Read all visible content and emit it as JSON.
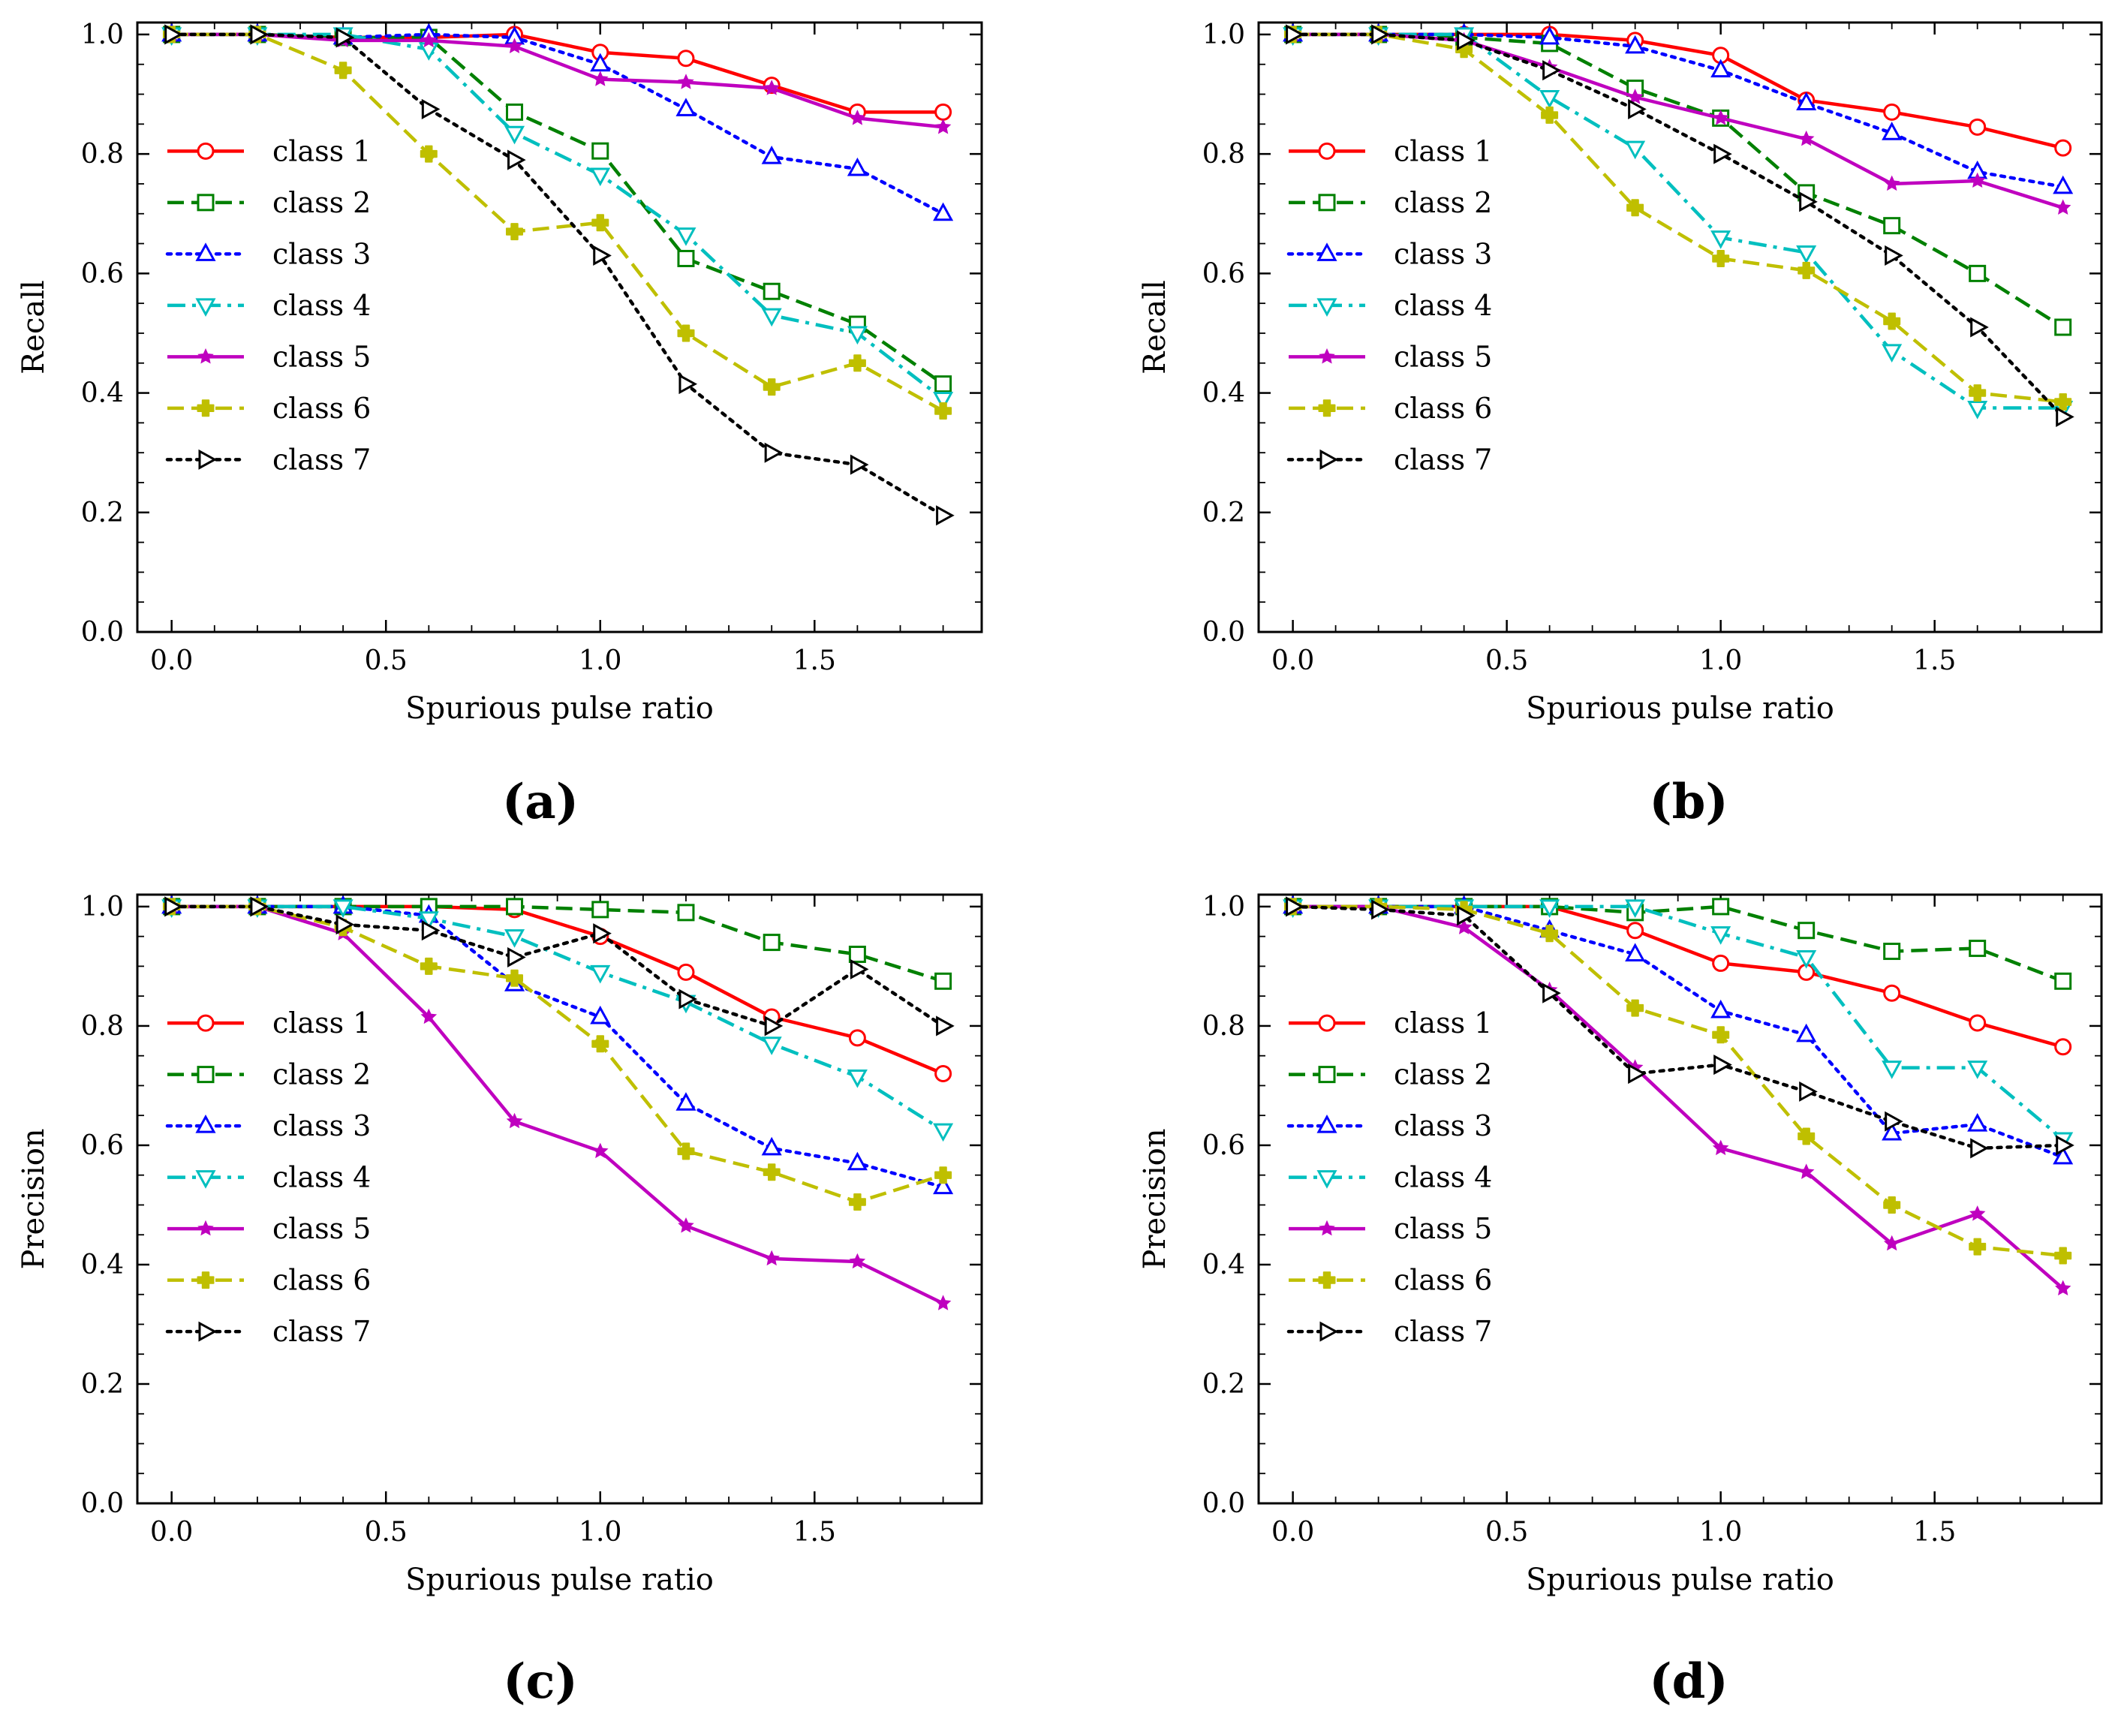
{
  "chart_data": [
    {
      "panel": "(a)",
      "type": "line",
      "xlabel": "Spurious pulse ratio",
      "ylabel": "Recall",
      "xlim": [
        -0.08,
        1.89
      ],
      "ylim": [
        0.0,
        1.02
      ],
      "xticks": [
        "0.0",
        "0.5",
        "1.0",
        "1.5"
      ],
      "yticks": [
        "0.0",
        "0.2",
        "0.4",
        "0.6",
        "0.8",
        "1.0"
      ],
      "legend": "center-left",
      "x": [
        0.0,
        0.2,
        0.4,
        0.6,
        0.8,
        1.0,
        1.2,
        1.4,
        1.6,
        1.8
      ],
      "series": [
        {
          "name": "class 1",
          "values": [
            1.0,
            1.0,
            0.995,
            0.995,
            1.0,
            0.97,
            0.96,
            0.915,
            0.87,
            0.87
          ]
        },
        {
          "name": "class 2",
          "values": [
            1.0,
            1.0,
            0.995,
            0.995,
            0.87,
            0.805,
            0.625,
            0.57,
            0.515,
            0.415
          ]
        },
        {
          "name": "class 3",
          "values": [
            1.0,
            1.0,
            0.995,
            1.0,
            0.995,
            0.95,
            0.875,
            0.795,
            0.775,
            0.7
          ]
        },
        {
          "name": "class 4",
          "values": [
            1.0,
            1.0,
            1.0,
            0.975,
            0.835,
            0.765,
            0.665,
            0.53,
            0.5,
            0.39
          ]
        },
        {
          "name": "class 5",
          "values": [
            1.0,
            1.0,
            0.99,
            0.99,
            0.98,
            0.925,
            0.92,
            0.91,
            0.86,
            0.845
          ]
        },
        {
          "name": "class 6",
          "values": [
            1.0,
            1.0,
            0.94,
            0.8,
            0.67,
            0.685,
            0.5,
            0.41,
            0.45,
            0.37
          ]
        },
        {
          "name": "class 7",
          "values": [
            1.0,
            1.0,
            0.995,
            0.875,
            0.79,
            0.63,
            0.415,
            0.3,
            0.28,
            0.195
          ]
        }
      ]
    },
    {
      "panel": "(b)",
      "type": "line",
      "xlabel": "Spurious pulse ratio",
      "ylabel": "Recall",
      "xlim": [
        -0.08,
        1.89
      ],
      "ylim": [
        0.0,
        1.02
      ],
      "xticks": [
        "0.0",
        "0.5",
        "1.0",
        "1.5"
      ],
      "yticks": [
        "0.0",
        "0.2",
        "0.4",
        "0.6",
        "0.8",
        "1.0"
      ],
      "legend": "center-left",
      "x": [
        0.0,
        0.2,
        0.4,
        0.6,
        0.8,
        1.0,
        1.2,
        1.4,
        1.6,
        1.8
      ],
      "series": [
        {
          "name": "class 1",
          "values": [
            1.0,
            1.0,
            1.0,
            1.0,
            0.99,
            0.965,
            0.89,
            0.87,
            0.845,
            0.81
          ]
        },
        {
          "name": "class 2",
          "values": [
            1.0,
            1.0,
            0.995,
            0.985,
            0.91,
            0.86,
            0.735,
            0.68,
            0.6,
            0.51
          ]
        },
        {
          "name": "class 3",
          "values": [
            1.0,
            1.0,
            1.0,
            0.995,
            0.98,
            0.94,
            0.885,
            0.835,
            0.77,
            0.745
          ]
        },
        {
          "name": "class 4",
          "values": [
            1.0,
            1.0,
            1.0,
            0.895,
            0.81,
            0.66,
            0.635,
            0.47,
            0.375,
            0.375
          ]
        },
        {
          "name": "class 5",
          "values": [
            1.0,
            1.0,
            0.99,
            0.945,
            0.895,
            0.86,
            0.825,
            0.75,
            0.755,
            0.71
          ]
        },
        {
          "name": "class 6",
          "values": [
            1.0,
            1.0,
            0.975,
            0.865,
            0.71,
            0.625,
            0.605,
            0.52,
            0.4,
            0.385
          ]
        },
        {
          "name": "class 7",
          "values": [
            1.0,
            1.0,
            0.99,
            0.94,
            0.875,
            0.8,
            0.72,
            0.63,
            0.51,
            0.36
          ]
        }
      ]
    },
    {
      "panel": "(c)",
      "type": "line",
      "xlabel": "Spurious pulse ratio",
      "ylabel": "Precision",
      "xlim": [
        -0.08,
        1.89
      ],
      "ylim": [
        0.0,
        1.02
      ],
      "xticks": [
        "0.0",
        "0.5",
        "1.0",
        "1.5"
      ],
      "yticks": [
        "0.0",
        "0.2",
        "0.4",
        "0.6",
        "0.8",
        "1.0"
      ],
      "legend": "center-left",
      "x": [
        0.0,
        0.2,
        0.4,
        0.6,
        0.8,
        1.0,
        1.2,
        1.4,
        1.6,
        1.8
      ],
      "series": [
        {
          "name": "class 1",
          "values": [
            1.0,
            1.0,
            1.0,
            1.0,
            0.995,
            0.95,
            0.89,
            0.815,
            0.78,
            0.72
          ]
        },
        {
          "name": "class 2",
          "values": [
            1.0,
            1.0,
            1.0,
            1.0,
            1.0,
            0.995,
            0.99,
            0.94,
            0.92,
            0.875
          ]
        },
        {
          "name": "class 3",
          "values": [
            1.0,
            1.0,
            1.0,
            0.985,
            0.87,
            0.815,
            0.67,
            0.595,
            0.57,
            0.53
          ]
        },
        {
          "name": "class 4",
          "values": [
            1.0,
            1.0,
            1.0,
            0.98,
            0.95,
            0.89,
            0.84,
            0.77,
            0.715,
            0.625
          ]
        },
        {
          "name": "class 5",
          "values": [
            1.0,
            1.0,
            0.955,
            0.815,
            0.64,
            0.59,
            0.465,
            0.41,
            0.405,
            0.335
          ]
        },
        {
          "name": "class 6",
          "values": [
            1.0,
            1.0,
            0.965,
            0.9,
            0.88,
            0.77,
            0.59,
            0.555,
            0.505,
            0.55
          ]
        },
        {
          "name": "class 7",
          "values": [
            1.0,
            1.0,
            0.97,
            0.96,
            0.915,
            0.955,
            0.845,
            0.8,
            0.895,
            0.8
          ]
        }
      ]
    },
    {
      "panel": "(d)",
      "type": "line",
      "xlabel": "Spurious pulse ratio",
      "ylabel": "Precision",
      "xlim": [
        -0.08,
        1.89
      ],
      "ylim": [
        0.0,
        1.02
      ],
      "xticks": [
        "0.0",
        "0.5",
        "1.0",
        "1.5"
      ],
      "yticks": [
        "0.0",
        "0.2",
        "0.4",
        "0.6",
        "0.8",
        "1.0"
      ],
      "legend": "center-left",
      "x": [
        0.0,
        0.2,
        0.4,
        0.6,
        0.8,
        1.0,
        1.2,
        1.4,
        1.6,
        1.8
      ],
      "series": [
        {
          "name": "class 1",
          "values": [
            1.0,
            1.0,
            1.0,
            1.0,
            0.96,
            0.905,
            0.89,
            0.855,
            0.805,
            0.765
          ]
        },
        {
          "name": "class 2",
          "values": [
            1.0,
            1.0,
            1.0,
            1.0,
            0.99,
            1.0,
            0.96,
            0.925,
            0.93,
            0.875
          ]
        },
        {
          "name": "class 3",
          "values": [
            1.0,
            1.0,
            1.0,
            0.96,
            0.92,
            0.825,
            0.785,
            0.62,
            0.635,
            0.58
          ]
        },
        {
          "name": "class 4",
          "values": [
            1.0,
            1.0,
            1.0,
            1.0,
            1.0,
            0.955,
            0.915,
            0.73,
            0.73,
            0.61
          ]
        },
        {
          "name": "class 5",
          "values": [
            1.0,
            1.0,
            0.965,
            0.86,
            0.73,
            0.595,
            0.555,
            0.435,
            0.485,
            0.36
          ]
        },
        {
          "name": "class 6",
          "values": [
            1.0,
            1.0,
            0.995,
            0.955,
            0.83,
            0.785,
            0.615,
            0.5,
            0.43,
            0.415
          ]
        },
        {
          "name": "class 7",
          "values": [
            1.0,
            0.995,
            0.985,
            0.855,
            0.72,
            0.735,
            0.69,
            0.64,
            0.595,
            0.6
          ]
        }
      ]
    }
  ],
  "styles": [
    {
      "name": "class 1",
      "color": "#ff0000",
      "dash": "solid",
      "marker": "circle-open"
    },
    {
      "name": "class 2",
      "color": "#008000",
      "dash": "dashed",
      "marker": "square-open"
    },
    {
      "name": "class 3",
      "color": "#0000ff",
      "dash": "dotted",
      "marker": "triangle-up-open"
    },
    {
      "name": "class 4",
      "color": "#00bfbf",
      "dash": "dashdot",
      "marker": "triangle-down-open"
    },
    {
      "name": "class 5",
      "color": "#bf00bf",
      "dash": "solid",
      "marker": "star-filled"
    },
    {
      "name": "class 6",
      "color": "#bfbf00",
      "dash": "dashed",
      "marker": "plus-filled"
    },
    {
      "name": "class 7",
      "color": "#000000",
      "dash": "dotted",
      "marker": "triangle-right-open"
    }
  ]
}
